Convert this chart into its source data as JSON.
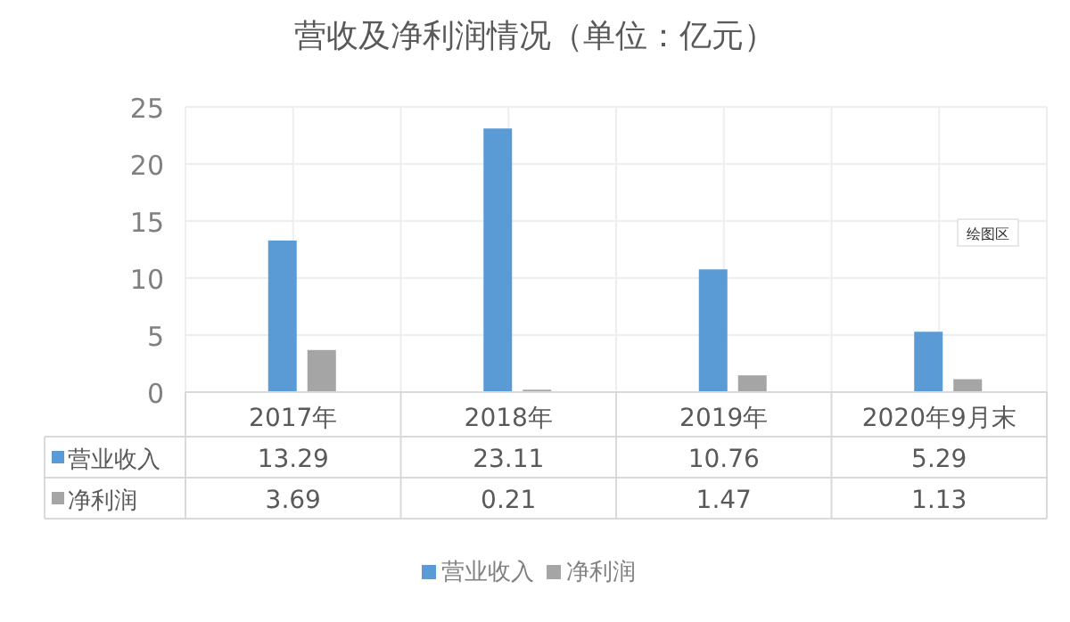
{
  "chart_data": {
    "type": "bar",
    "title": "营收及净利润情况（单位：亿元）",
    "categories": [
      "2017年",
      "2018年",
      "2019年",
      "2020年9月末"
    ],
    "series": [
      {
        "name": "营业收入",
        "color": "#5b9bd5",
        "values": [
          13.29,
          23.11,
          10.76,
          5.29
        ]
      },
      {
        "name": "净利润",
        "color": "#a5a5a5",
        "values": [
          3.69,
          0.21,
          1.47,
          1.13
        ]
      }
    ],
    "ylim": [
      0,
      25
    ],
    "yticks": [
      0,
      5,
      10,
      15,
      20,
      25
    ],
    "grid": true,
    "legend": "bottom",
    "data_labels": true,
    "annotations": [
      "绘图区"
    ]
  }
}
